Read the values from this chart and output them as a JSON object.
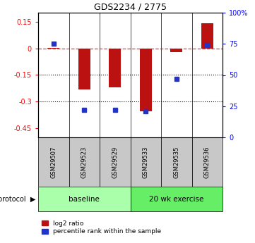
{
  "title": "GDS2234 / 2775",
  "samples": [
    "GSM29507",
    "GSM29523",
    "GSM29529",
    "GSM29533",
    "GSM29535",
    "GSM29536"
  ],
  "log2_ratio": [
    0.0,
    -0.23,
    -0.22,
    -0.355,
    -0.02,
    0.14
  ],
  "percentile_rank": [
    75,
    22,
    22,
    21,
    47,
    74
  ],
  "groups": [
    {
      "label": "baseline",
      "start": 0,
      "end": 3,
      "color": "#aaffaa"
    },
    {
      "label": "20 wk exercise",
      "start": 3,
      "end": 6,
      "color": "#66ee66"
    }
  ],
  "ylim_left": [
    -0.5,
    0.2
  ],
  "ylim_right": [
    0,
    100
  ],
  "yticks_left": [
    0.15,
    0.0,
    -0.15,
    -0.3,
    -0.45
  ],
  "yticks_right": [
    100,
    75,
    50,
    25,
    0
  ],
  "bar_color": "#bb1111",
  "dot_color": "#2233cc",
  "legend_labels": [
    "log2 ratio",
    "percentile rank within the sample"
  ],
  "bar_width": 0.4
}
